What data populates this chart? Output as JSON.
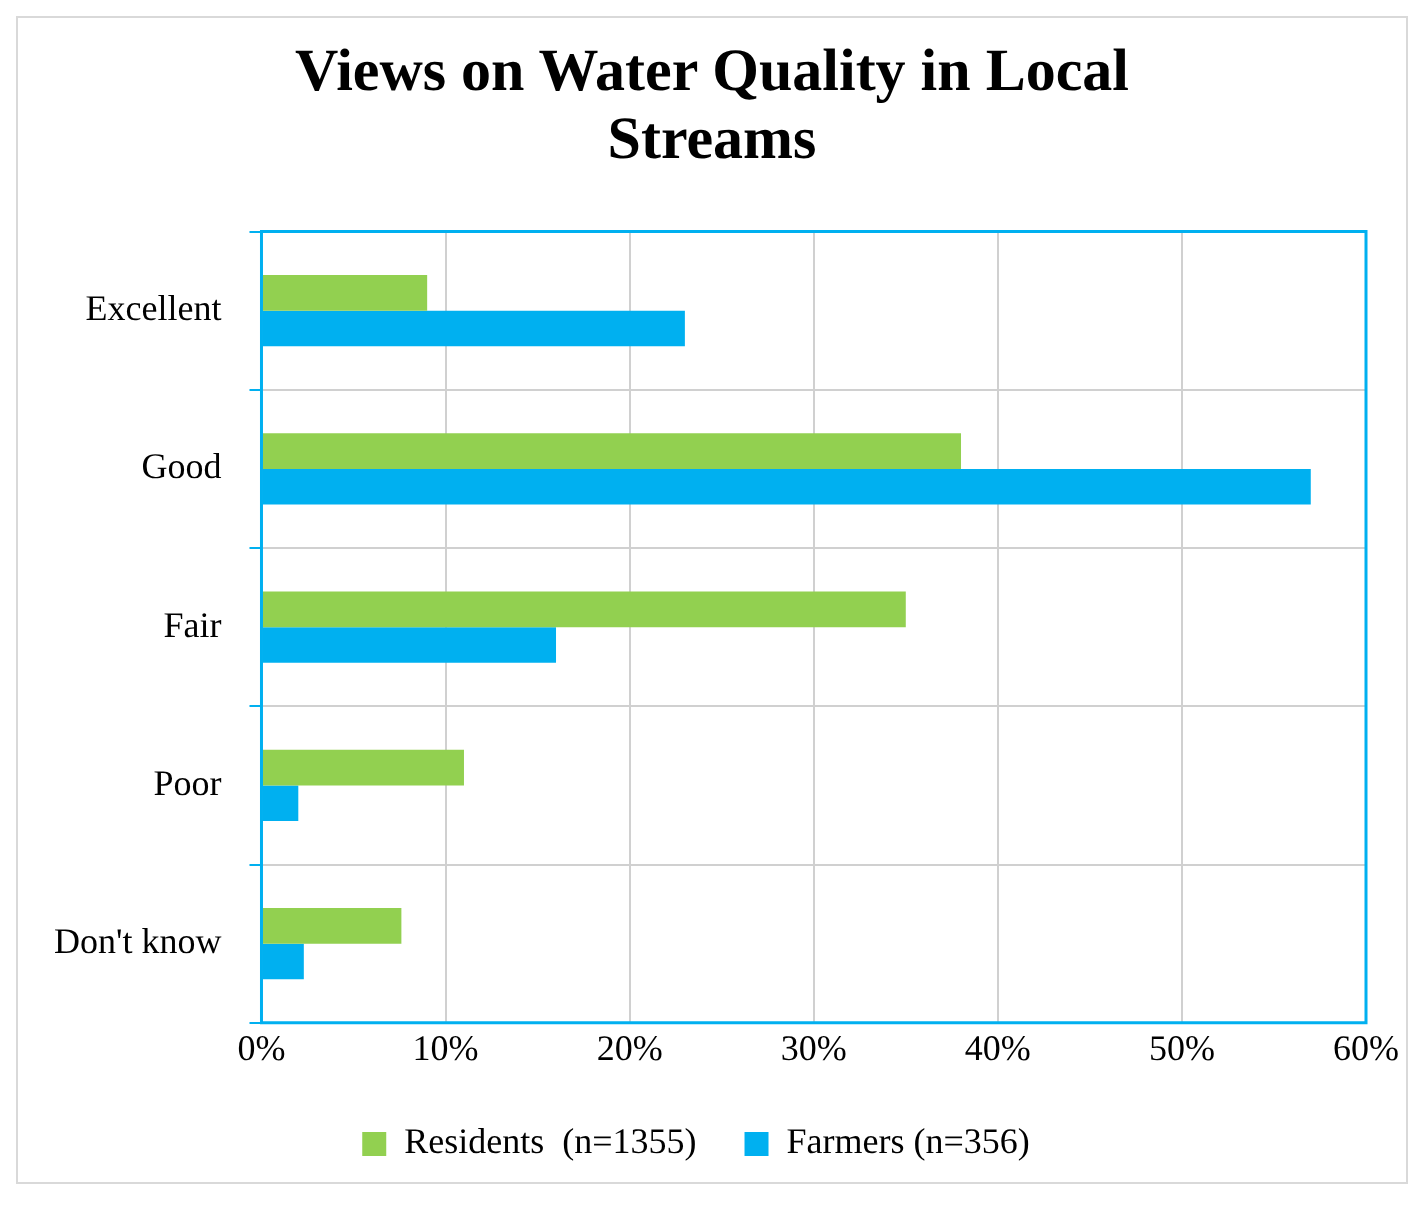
{
  "chart_data": {
    "type": "bar",
    "orientation": "horizontal",
    "title": "Views on Water Quality in Local Streams",
    "categories": [
      "Excellent",
      "Good",
      "Fair",
      "Poor",
      "Don't know"
    ],
    "series": [
      {
        "name": "Residents  (n=1355)",
        "color": "#92d050",
        "values": [
          9,
          38,
          35,
          11,
          7.6
        ]
      },
      {
        "name": "Farmers (n=356)",
        "color": "#00b0f0",
        "values": [
          23,
          57,
          16,
          2,
          2.3
        ]
      }
    ],
    "xlim": [
      0,
      60
    ],
    "xticks": [
      {
        "value": 0,
        "label": "0%"
      },
      {
        "value": 10,
        "label": "10%"
      },
      {
        "value": 20,
        "label": "20%"
      },
      {
        "value": 30,
        "label": "30%"
      },
      {
        "value": 40,
        "label": "40%"
      },
      {
        "value": 50,
        "label": "50%"
      },
      {
        "value": 60,
        "label": "60%"
      }
    ],
    "grid": true,
    "legend": "bottom"
  }
}
